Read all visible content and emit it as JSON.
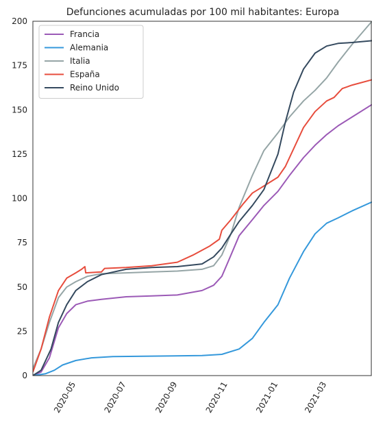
{
  "chart_data": {
    "type": "line",
    "title": "Defunciones acumuladas por 100 mil habitantes: Europa",
    "xlabel": "",
    "ylabel": "",
    "ylim": [
      0,
      200
    ],
    "xlim": [
      "2020-03-10",
      "2021-04-25"
    ],
    "yticks": [
      "0",
      "25",
      "50",
      "75",
      "100",
      "125",
      "150",
      "175",
      "200"
    ],
    "xticks": [
      {
        "label": "2020-05",
        "date": "2020-05-01"
      },
      {
        "label": "2020-07",
        "date": "2020-07-01"
      },
      {
        "label": "2020-09",
        "date": "2020-09-01"
      },
      {
        "label": "2020-11",
        "date": "2020-11-01"
      },
      {
        "label": "2021-01",
        "date": "2021-01-01"
      },
      {
        "label": "2021-03",
        "date": "2021-03-01"
      }
    ],
    "grid": false,
    "legend": "top-left",
    "series": [
      {
        "name": "Francia",
        "color": "#9b59b6",
        "points": [
          [
            "2020-03-10",
            0
          ],
          [
            "2020-03-20",
            2
          ],
          [
            "2020-03-30",
            10
          ],
          [
            "2020-04-10",
            27
          ],
          [
            "2020-04-20",
            35
          ],
          [
            "2020-05-01",
            40
          ],
          [
            "2020-05-15",
            42
          ],
          [
            "2020-06-01",
            43
          ],
          [
            "2020-07-01",
            44.5
          ],
          [
            "2020-08-01",
            45
          ],
          [
            "2020-09-01",
            45.5
          ],
          [
            "2020-10-01",
            48
          ],
          [
            "2020-10-15",
            51
          ],
          [
            "2020-10-25",
            56
          ],
          [
            "2020-11-05",
            68
          ],
          [
            "2020-11-15",
            79
          ],
          [
            "2020-12-01",
            88
          ],
          [
            "2020-12-15",
            96
          ],
          [
            "2021-01-01",
            104
          ],
          [
            "2021-01-15",
            113
          ],
          [
            "2021-02-01",
            123
          ],
          [
            "2021-02-15",
            130
          ],
          [
            "2021-03-01",
            136
          ],
          [
            "2021-03-15",
            141
          ],
          [
            "2021-04-01",
            146
          ],
          [
            "2021-04-25",
            153
          ]
        ]
      },
      {
        "name": "Alemania",
        "color": "#3498db",
        "points": [
          [
            "2020-03-10",
            0
          ],
          [
            "2020-03-25",
            1
          ],
          [
            "2020-04-05",
            3
          ],
          [
            "2020-04-15",
            6
          ],
          [
            "2020-05-01",
            8.5
          ],
          [
            "2020-05-20",
            10
          ],
          [
            "2020-06-15",
            10.7
          ],
          [
            "2020-08-01",
            11
          ],
          [
            "2020-10-01",
            11.3
          ],
          [
            "2020-10-25",
            12
          ],
          [
            "2020-11-15",
            15
          ],
          [
            "2020-12-01",
            21
          ],
          [
            "2020-12-15",
            30
          ],
          [
            "2021-01-01",
            40
          ],
          [
            "2021-01-15",
            55
          ],
          [
            "2021-02-01",
            70
          ],
          [
            "2021-02-15",
            80
          ],
          [
            "2021-03-01",
            86
          ],
          [
            "2021-03-15",
            89
          ],
          [
            "2021-04-01",
            93
          ],
          [
            "2021-04-25",
            98
          ]
        ]
      },
      {
        "name": "Italia",
        "color": "#95a5a6",
        "points": [
          [
            "2020-03-10",
            4
          ],
          [
            "2020-03-20",
            15
          ],
          [
            "2020-03-30",
            30
          ],
          [
            "2020-04-10",
            44
          ],
          [
            "2020-04-20",
            50
          ],
          [
            "2020-05-01",
            53
          ],
          [
            "2020-05-15",
            56
          ],
          [
            "2020-06-01",
            57.5
          ],
          [
            "2020-07-01",
            58
          ],
          [
            "2020-08-01",
            58.5
          ],
          [
            "2020-09-01",
            59
          ],
          [
            "2020-10-01",
            60
          ],
          [
            "2020-10-15",
            62
          ],
          [
            "2020-10-25",
            68
          ],
          [
            "2020-11-05",
            80
          ],
          [
            "2020-11-15",
            95
          ],
          [
            "2020-12-01",
            113
          ],
          [
            "2020-12-15",
            127
          ],
          [
            "2021-01-01",
            137
          ],
          [
            "2021-01-15",
            146
          ],
          [
            "2021-02-01",
            155
          ],
          [
            "2021-02-15",
            161
          ],
          [
            "2021-03-01",
            168
          ],
          [
            "2021-03-15",
            177
          ],
          [
            "2021-04-01",
            187
          ],
          [
            "2021-04-25",
            200
          ]
        ]
      },
      {
        "name": "España",
        "color": "#e74c3c",
        "points": [
          [
            "2020-03-10",
            2
          ],
          [
            "2020-03-20",
            15
          ],
          [
            "2020-03-30",
            33
          ],
          [
            "2020-04-10",
            48
          ],
          [
            "2020-04-20",
            55
          ],
          [
            "2020-05-01",
            58
          ],
          [
            "2020-05-08",
            60
          ],
          [
            "2020-05-12",
            61.5
          ],
          [
            "2020-05-13",
            58
          ],
          [
            "2020-06-01",
            58.5
          ],
          [
            "2020-06-05",
            60.5
          ],
          [
            "2020-07-01",
            61
          ],
          [
            "2020-08-01",
            62
          ],
          [
            "2020-09-01",
            64
          ],
          [
            "2020-09-20",
            68
          ],
          [
            "2020-10-10",
            73
          ],
          [
            "2020-10-22",
            77
          ],
          [
            "2020-10-25",
            82
          ],
          [
            "2020-11-05",
            88
          ],
          [
            "2020-11-20",
            97
          ],
          [
            "2020-12-01",
            103
          ],
          [
            "2020-12-15",
            107
          ],
          [
            "2021-01-01",
            112
          ],
          [
            "2021-01-10",
            118
          ],
          [
            "2021-01-20",
            128
          ],
          [
            "2021-02-01",
            140
          ],
          [
            "2021-02-15",
            149
          ],
          [
            "2021-03-01",
            155
          ],
          [
            "2021-03-10",
            157
          ],
          [
            "2021-03-20",
            162
          ],
          [
            "2021-04-01",
            164
          ],
          [
            "2021-04-25",
            167
          ]
        ]
      },
      {
        "name": "Reino Unido",
        "color": "#34495e",
        "points": [
          [
            "2020-03-10",
            0
          ],
          [
            "2020-03-20",
            3
          ],
          [
            "2020-04-01",
            15
          ],
          [
            "2020-04-10",
            30
          ],
          [
            "2020-04-20",
            40
          ],
          [
            "2020-05-01",
            48
          ],
          [
            "2020-05-15",
            53
          ],
          [
            "2020-06-01",
            57
          ],
          [
            "2020-07-01",
            60
          ],
          [
            "2020-08-01",
            61
          ],
          [
            "2020-09-01",
            61.5
          ],
          [
            "2020-10-01",
            63
          ],
          [
            "2020-10-15",
            67
          ],
          [
            "2020-10-25",
            72
          ],
          [
            "2020-11-05",
            80
          ],
          [
            "2020-11-15",
            87
          ],
          [
            "2020-12-01",
            96
          ],
          [
            "2020-12-15",
            105
          ],
          [
            "2021-01-01",
            125
          ],
          [
            "2021-01-10",
            143
          ],
          [
            "2021-01-20",
            160
          ],
          [
            "2021-02-01",
            173
          ],
          [
            "2021-02-15",
            182
          ],
          [
            "2021-03-01",
            186
          ],
          [
            "2021-03-15",
            187.5
          ],
          [
            "2021-04-01",
            188
          ],
          [
            "2021-04-25",
            189
          ]
        ]
      }
    ]
  }
}
